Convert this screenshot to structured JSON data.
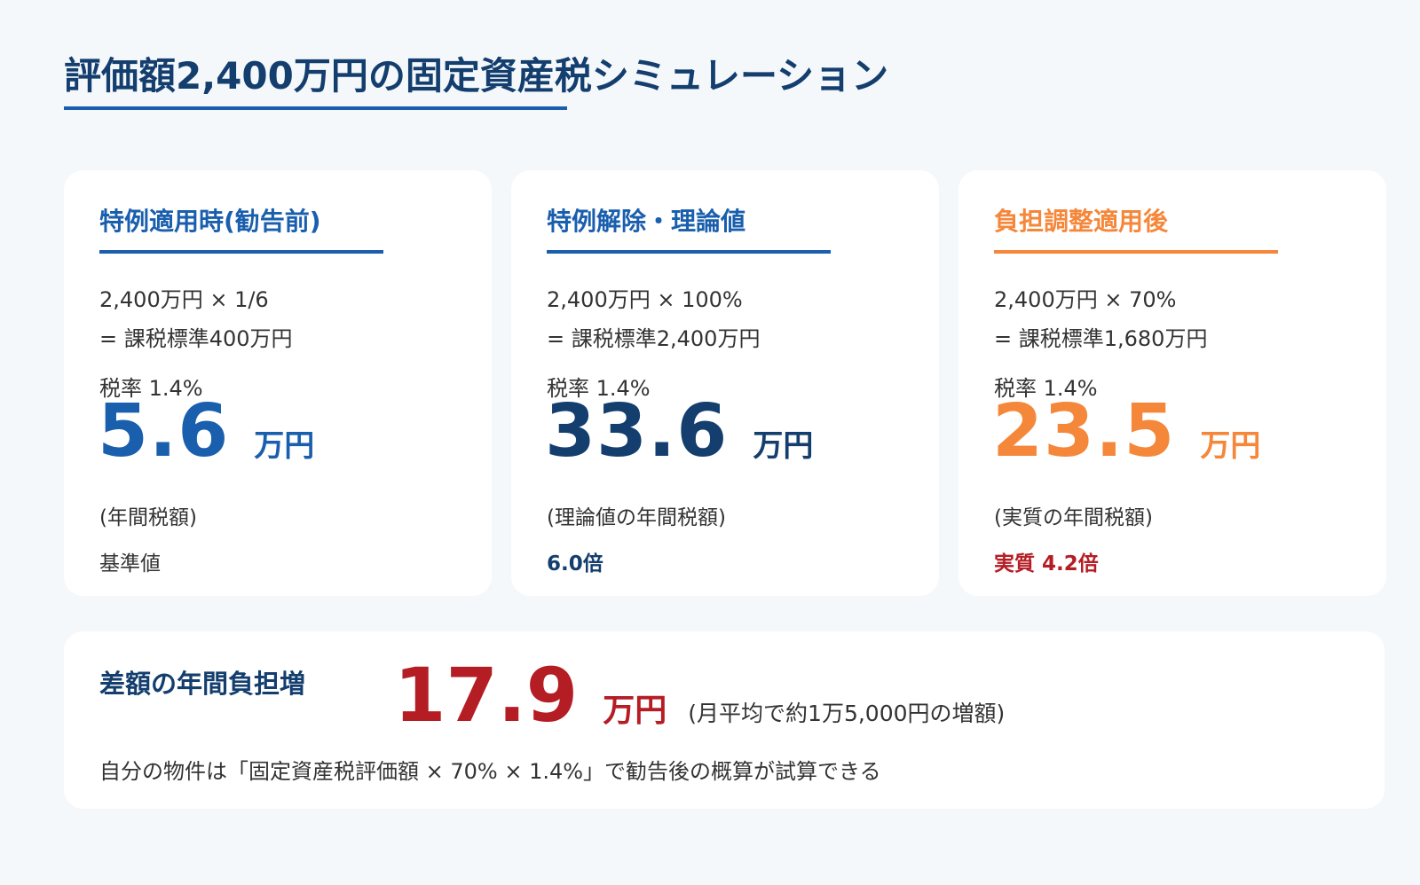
{
  "page": {
    "title": "評価額2,400万円の固定資産税シミュレーション"
  },
  "cards": [
    {
      "heading": "特例適用時(勧告前)",
      "formula_line1": "2,400万円 × 1/6",
      "formula_line2": "= 課税標準400万円",
      "rate": "税率 1.4%",
      "amount": "5.6",
      "unit": "万円",
      "note": "(年間税額)",
      "ratio": "基準値"
    },
    {
      "heading": "特例解除・理論値",
      "formula_line1": "2,400万円 × 100%",
      "formula_line2": "= 課税標準2,400万円",
      "rate": "税率 1.4%",
      "amount": "33.6",
      "unit": "万円",
      "note": "(理論値の年間税額)",
      "ratio": "6.0倍"
    },
    {
      "heading": "負担調整適用後",
      "formula_line1": "2,400万円 × 70%",
      "formula_line2": "= 課税標準1,680万円",
      "rate": "税率 1.4%",
      "amount": "23.5",
      "unit": "万円",
      "note": "(実質の年間税額)",
      "ratio": "実質 4.2倍"
    }
  ],
  "summary": {
    "label": "差額の年間負担増",
    "amount": "17.9",
    "unit": "万円",
    "monthly_note": "(月平均で約1万5,000円の増額)",
    "description": "自分の物件は「固定資産税評価額 × 70% × 1.4%」で勧告後の概算が試算できる"
  },
  "colors": {
    "primary_blue": "#1a5fad",
    "navy": "#133e6e",
    "orange": "#f5873a",
    "red": "#b51d24",
    "background": "#f5f8fb"
  }
}
